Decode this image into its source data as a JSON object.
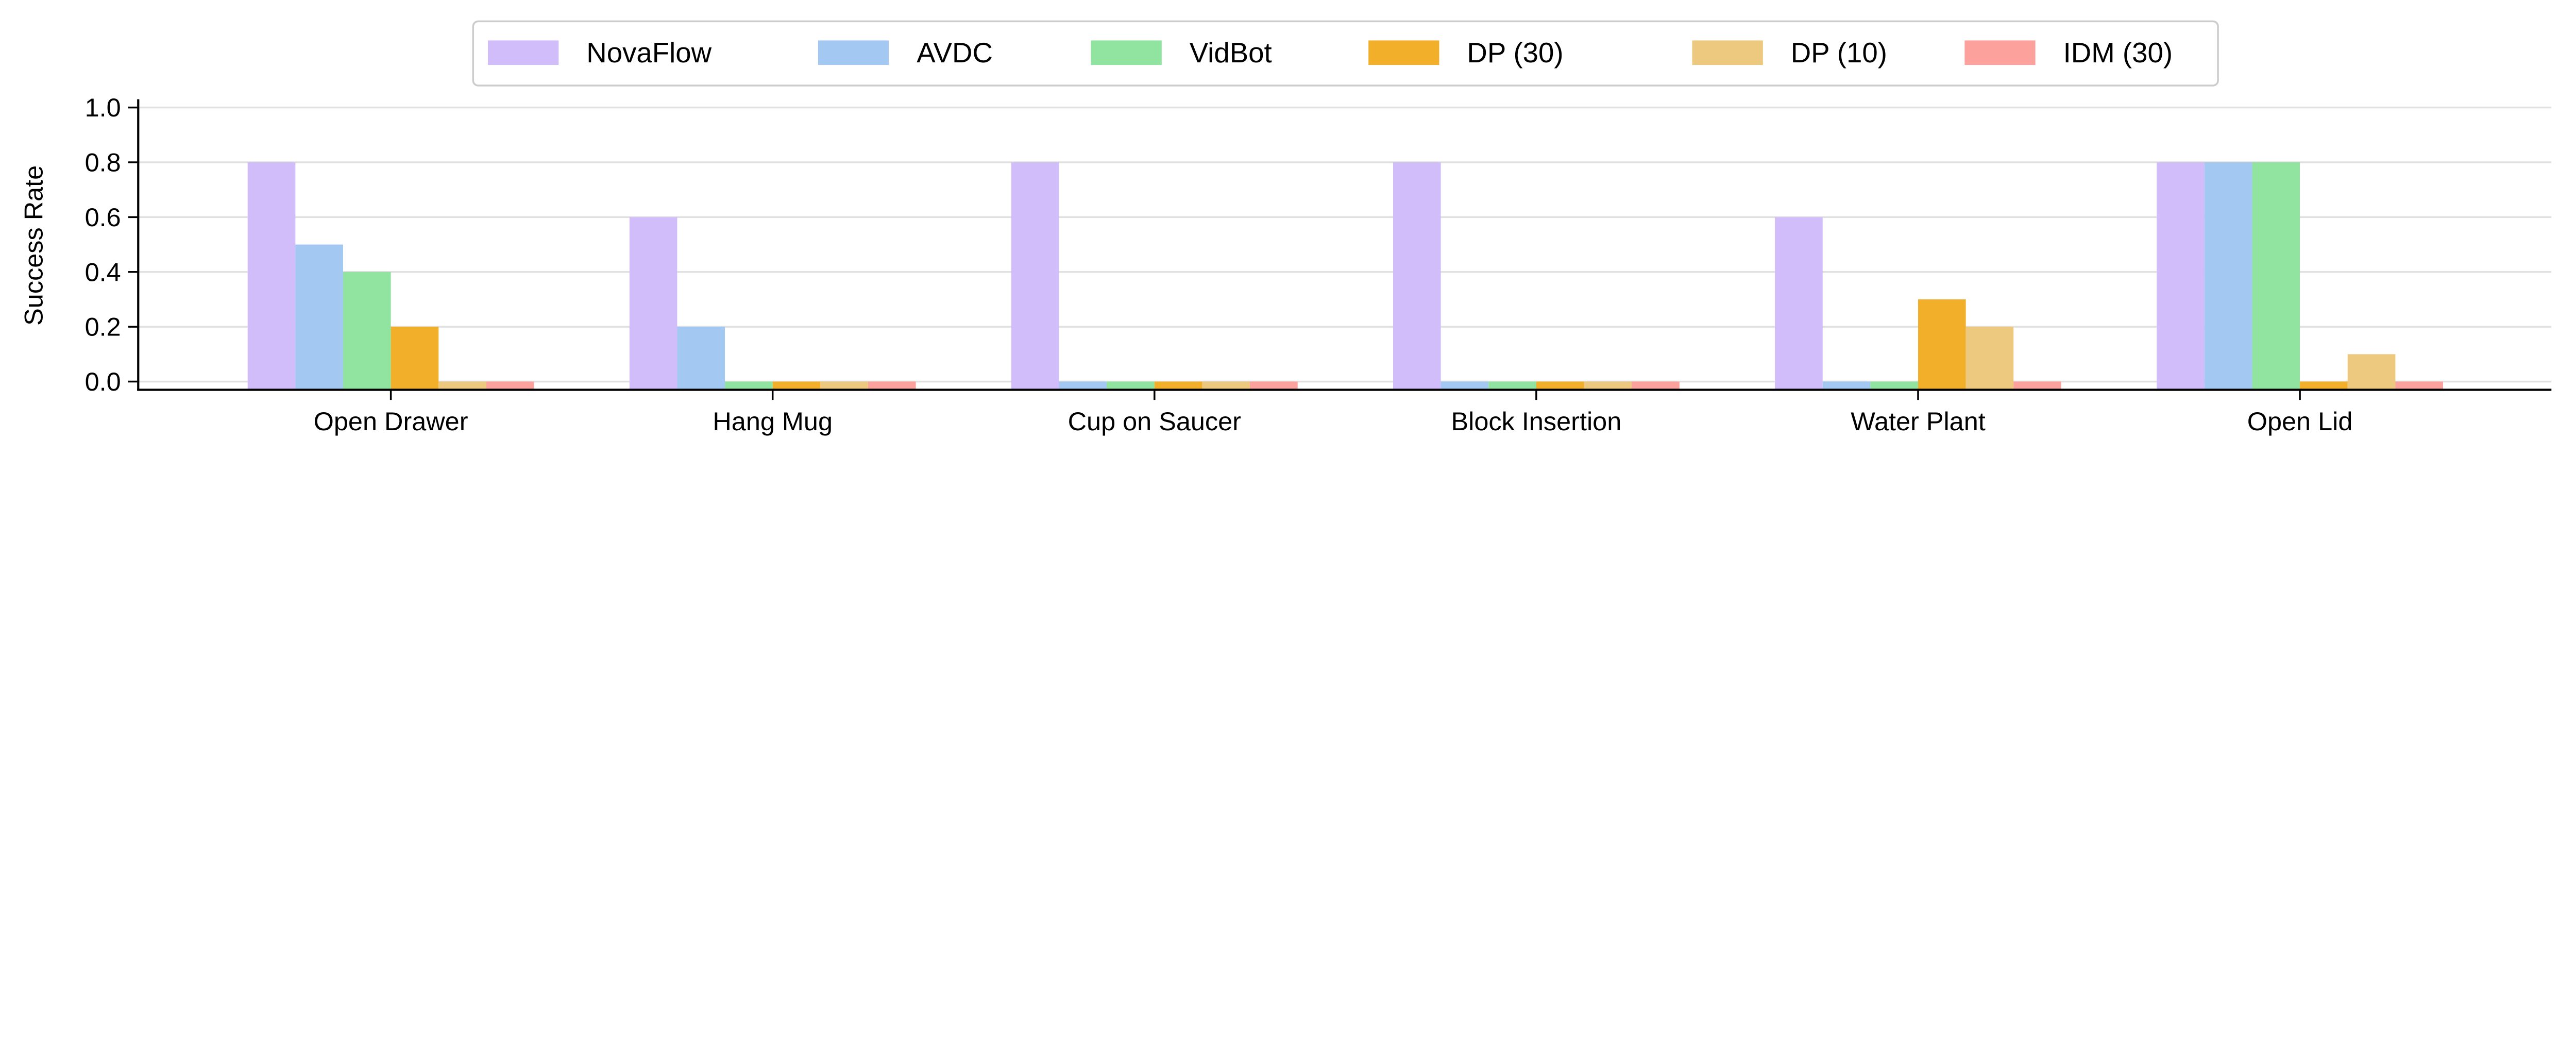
{
  "chart_data": {
    "type": "bar",
    "title": "",
    "xlabel": "",
    "ylabel": "Success Rate",
    "ylim": [
      -0.03,
      1.03
    ],
    "yticks": [
      "0.0",
      "0.2",
      "0.4",
      "0.6",
      "0.8",
      "1.0"
    ],
    "grid": "horizontal",
    "legend_position": "top-center",
    "categories": [
      "Open Drawer",
      "Hang Mug",
      "Cup on Saucer",
      "Block Insertion",
      "Water Plant",
      "Open Lid"
    ],
    "series": [
      {
        "name": "NovaFlow",
        "color": "#d1bdfa",
        "values": [
          0.8,
          0.6,
          0.8,
          0.8,
          0.6,
          0.8
        ]
      },
      {
        "name": "AVDC",
        "color": "#a3c8f2",
        "values": [
          0.5,
          0.2,
          0.0,
          0.0,
          0.0,
          0.8
        ]
      },
      {
        "name": "VidBot",
        "color": "#90e4a0",
        "values": [
          0.4,
          0.0,
          0.0,
          0.0,
          0.0,
          0.8
        ]
      },
      {
        "name": "DP (30)",
        "color": "#f2b02a",
        "values": [
          0.2,
          0.0,
          0.0,
          0.0,
          0.3,
          0.0
        ]
      },
      {
        "name": "DP (10)",
        "color": "#edc87f",
        "values": [
          0.0,
          0.0,
          0.0,
          0.0,
          0.2,
          0.1
        ]
      },
      {
        "name": "IDM (30)",
        "color": "#fca19b",
        "values": [
          0.0,
          0.0,
          0.0,
          0.0,
          0.0,
          0.0
        ]
      }
    ]
  }
}
